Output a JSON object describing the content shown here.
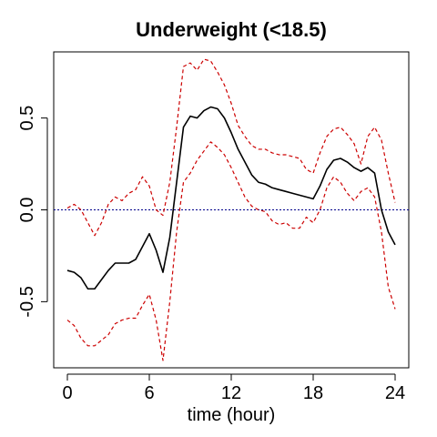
{
  "chart_data": {
    "type": "line",
    "title": "Underweight (<18.5)",
    "xlabel": "time (hour)",
    "ylabel": "",
    "xlim": [
      -1,
      25
    ],
    "ylim": [
      -0.86,
      0.86
    ],
    "x_ticks": [
      0,
      6,
      12,
      18,
      24
    ],
    "y_ticks": [
      -0.5,
      0.0,
      0.5
    ],
    "x_tick_labels": [
      "0",
      "6",
      "12",
      "18",
      "24"
    ],
    "y_tick_labels": [
      "-0.5",
      "0.0",
      "0.5"
    ],
    "grid": false,
    "reference_line": {
      "y": 0.0,
      "color": "#00008B",
      "style": "dotted"
    },
    "series": [
      {
        "role": "estimate",
        "color": "#000000",
        "style": "solid",
        "x": [
          0,
          0.5,
          1,
          1.5,
          2,
          2.5,
          3,
          3.5,
          4,
          4.5,
          5,
          5.5,
          6,
          6.5,
          7,
          7.5,
          8,
          8.5,
          9,
          9.5,
          10,
          10.5,
          11,
          11.5,
          12,
          12.5,
          13,
          13.5,
          14,
          14.5,
          15,
          15.5,
          16,
          16.5,
          17,
          17.5,
          18,
          18.5,
          19,
          19.5,
          20,
          20.5,
          21,
          21.5,
          22,
          22.5,
          23,
          23.5,
          24
        ],
        "y": [
          -0.33,
          -0.34,
          -0.37,
          -0.43,
          -0.43,
          -0.38,
          -0.33,
          -0.29,
          -0.29,
          -0.29,
          -0.27,
          -0.2,
          -0.13,
          -0.22,
          -0.34,
          -0.15,
          0.15,
          0.45,
          0.51,
          0.5,
          0.54,
          0.56,
          0.55,
          0.5,
          0.42,
          0.33,
          0.26,
          0.19,
          0.15,
          0.14,
          0.12,
          0.11,
          0.1,
          0.09,
          0.08,
          0.07,
          0.06,
          0.13,
          0.22,
          0.27,
          0.28,
          0.26,
          0.23,
          0.21,
          0.23,
          0.2,
          0.0,
          -0.12,
          -0.19
        ]
      },
      {
        "role": "upper-bound",
        "color": "#CC0000",
        "style": "dashed",
        "x": [
          0,
          0.5,
          1,
          1.5,
          2,
          2.5,
          3,
          3.5,
          4,
          4.5,
          5,
          5.5,
          6,
          6.5,
          7,
          7.5,
          8,
          8.5,
          9,
          9.5,
          10,
          10.5,
          11,
          11.5,
          12,
          12.5,
          13,
          13.5,
          14,
          14.5,
          15,
          15.5,
          16,
          16.5,
          17,
          17.5,
          18,
          18.5,
          19,
          19.5,
          20,
          20.5,
          21,
          21.5,
          22,
          22.5,
          23,
          23.5,
          24
        ],
        "y": [
          0.01,
          0.03,
          0.0,
          -0.07,
          -0.14,
          -0.07,
          0.03,
          0.07,
          0.05,
          0.09,
          0.11,
          0.18,
          0.13,
          0.0,
          -0.03,
          0.15,
          0.45,
          0.78,
          0.8,
          0.76,
          0.82,
          0.81,
          0.75,
          0.68,
          0.58,
          0.46,
          0.4,
          0.35,
          0.33,
          0.33,
          0.31,
          0.3,
          0.3,
          0.29,
          0.28,
          0.22,
          0.2,
          0.31,
          0.4,
          0.44,
          0.45,
          0.41,
          0.36,
          0.25,
          0.4,
          0.45,
          0.38,
          0.2,
          0.04
        ]
      },
      {
        "role": "lower-bound",
        "color": "#CC0000",
        "style": "dashed",
        "x": [
          0,
          0.5,
          1,
          1.5,
          2,
          2.5,
          3,
          3.5,
          4,
          4.5,
          5,
          5.5,
          6,
          6.5,
          7,
          7.5,
          8,
          8.5,
          9,
          9.5,
          10,
          10.5,
          11,
          11.5,
          12,
          12.5,
          13,
          13.5,
          14,
          14.5,
          15,
          15.5,
          16,
          16.5,
          17,
          17.5,
          18,
          18.5,
          19,
          19.5,
          20,
          20.5,
          21,
          21.5,
          22,
          22.5,
          23,
          23.5,
          24
        ],
        "y": [
          -0.6,
          -0.63,
          -0.7,
          -0.74,
          -0.74,
          -0.71,
          -0.68,
          -0.62,
          -0.6,
          -0.59,
          -0.59,
          -0.52,
          -0.46,
          -0.6,
          -0.82,
          -0.5,
          -0.12,
          0.15,
          0.2,
          0.27,
          0.32,
          0.37,
          0.34,
          0.3,
          0.23,
          0.15,
          0.07,
          0.02,
          0.0,
          -0.01,
          -0.06,
          -0.08,
          -0.07,
          -0.1,
          -0.1,
          -0.04,
          -0.07,
          0.0,
          0.12,
          0.18,
          0.15,
          0.09,
          0.05,
          0.1,
          0.12,
          0.07,
          -0.12,
          -0.42,
          -0.54
        ]
      }
    ]
  }
}
